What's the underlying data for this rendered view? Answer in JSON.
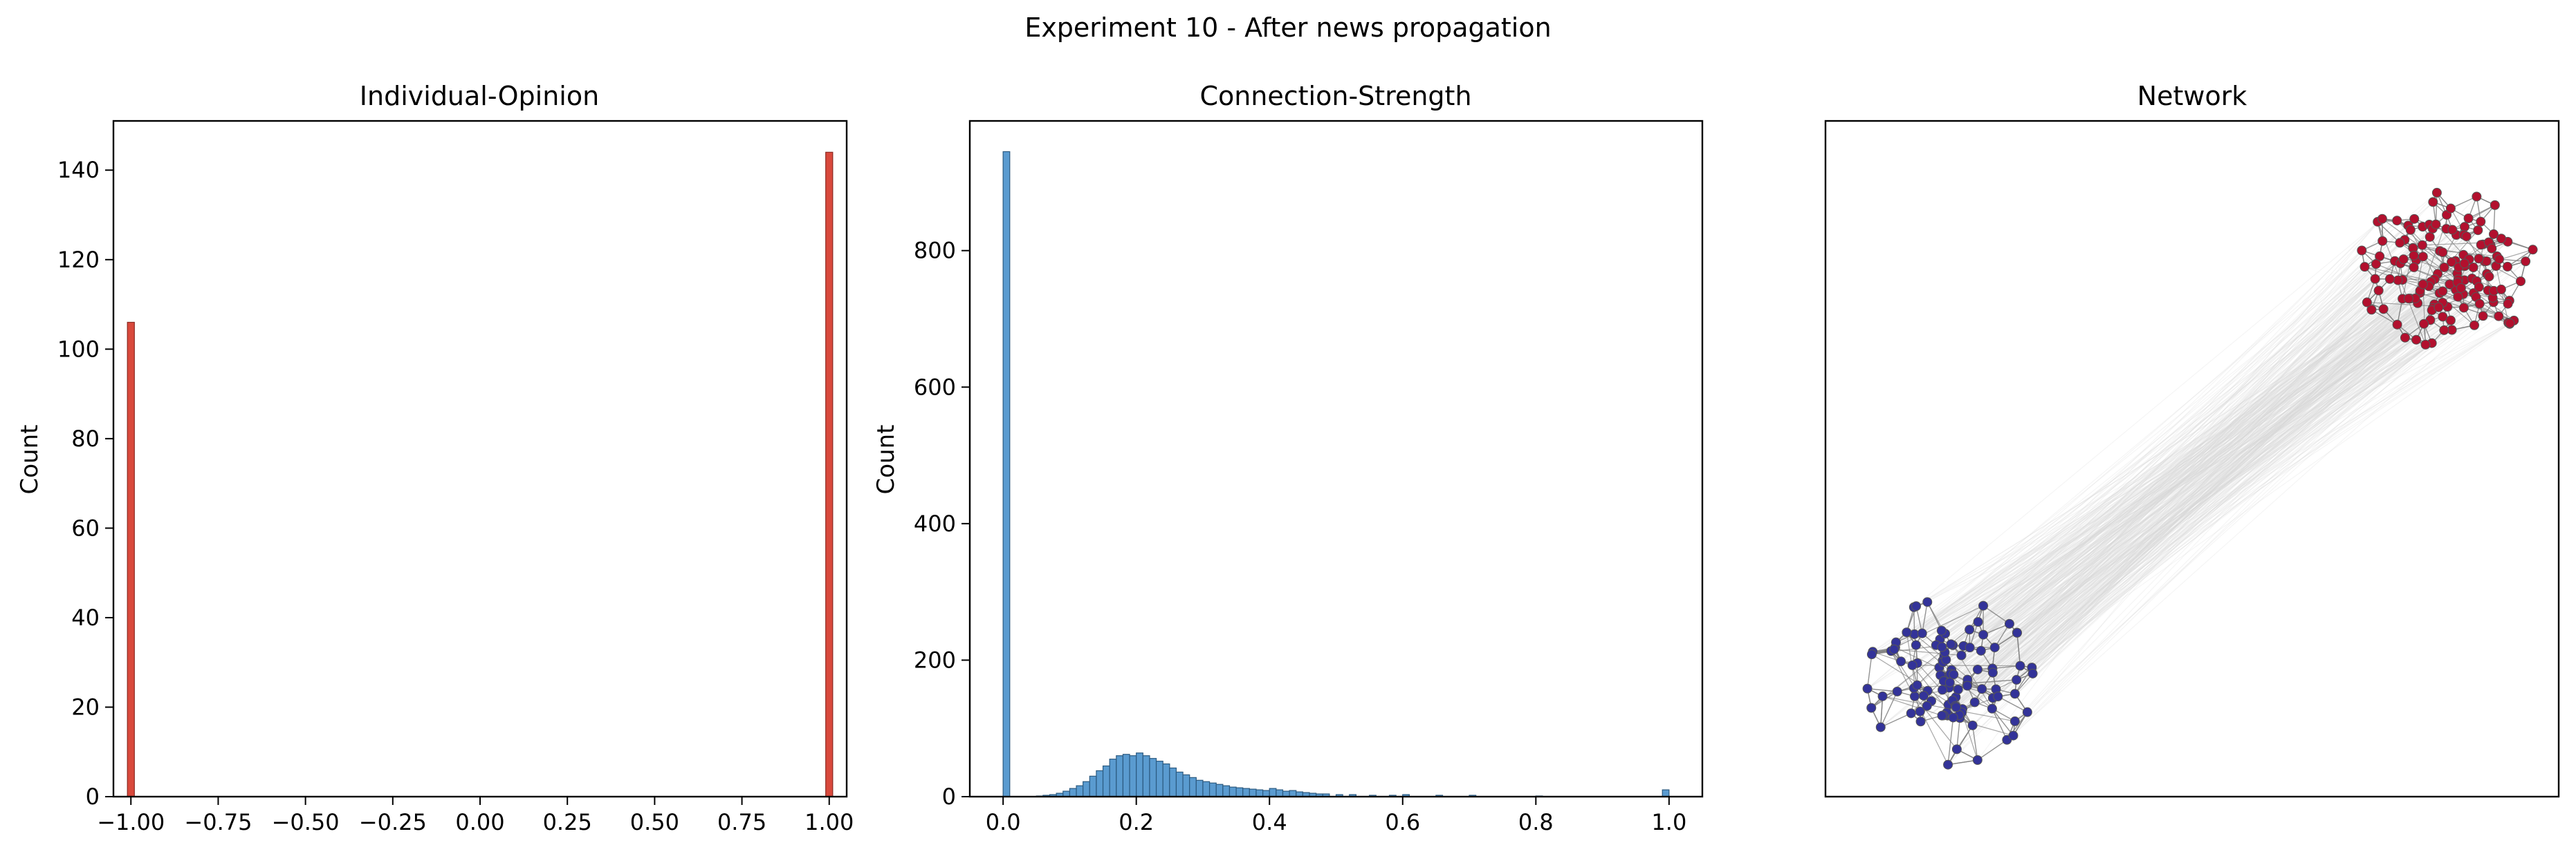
{
  "figure": {
    "suptitle": "Experiment 10 - After news propagation"
  },
  "chart_data": [
    {
      "type": "histogram",
      "title": "Individual-Opinion",
      "xlabel": "",
      "ylabel": "Count",
      "xlim": [
        -1.05,
        1.05
      ],
      "ylim": [
        0,
        151
      ],
      "xticks": [
        -1.0,
        -0.75,
        -0.5,
        -0.25,
        0.0,
        0.25,
        0.5,
        0.75,
        1.0
      ],
      "xtick_labels": [
        "−1.00",
        "−0.75",
        "−0.50",
        "−0.25",
        "0.00",
        "0.25",
        "0.50",
        "0.75",
        "1.00"
      ],
      "yticks": [
        0,
        20,
        40,
        60,
        80,
        100,
        120,
        140
      ],
      "ytick_labels": [
        "0",
        "20",
        "40",
        "60",
        "80",
        "100",
        "120",
        "140"
      ],
      "bin_width": 0.02,
      "bars": [
        {
          "x": -1.0,
          "count": 106
        },
        {
          "x": 1.0,
          "count": 144
        }
      ],
      "color": "#d9493c",
      "edge_color": "#8b2a22",
      "grid": false
    },
    {
      "type": "histogram",
      "title": "Connection-Strength",
      "xlabel": "",
      "ylabel": "Count",
      "xlim": [
        -0.05,
        1.05
      ],
      "ylim": [
        0,
        990
      ],
      "xticks": [
        0.0,
        0.2,
        0.4,
        0.6,
        0.8,
        1.0
      ],
      "xtick_labels": [
        "0.0",
        "0.2",
        "0.4",
        "0.6",
        "0.8",
        "1.0"
      ],
      "yticks": [
        0,
        200,
        400,
        600,
        800
      ],
      "ytick_labels": [
        "0",
        "200",
        "400",
        "600",
        "800"
      ],
      "bin_width": 0.01,
      "bin_starts": [
        0.0,
        0.05,
        0.06,
        0.07,
        0.08,
        0.09,
        0.1,
        0.11,
        0.12,
        0.13,
        0.14,
        0.15,
        0.16,
        0.17,
        0.18,
        0.19,
        0.2,
        0.21,
        0.22,
        0.23,
        0.24,
        0.25,
        0.26,
        0.27,
        0.28,
        0.29,
        0.3,
        0.31,
        0.32,
        0.33,
        0.34,
        0.35,
        0.36,
        0.37,
        0.38,
        0.39,
        0.4,
        0.41,
        0.42,
        0.43,
        0.44,
        0.45,
        0.46,
        0.47,
        0.48,
        0.5,
        0.52,
        0.55,
        0.58,
        0.6,
        0.65,
        0.7,
        0.8,
        0.99
      ],
      "counts": [
        945,
        1,
        2,
        3,
        5,
        8,
        12,
        16,
        22,
        30,
        38,
        45,
        55,
        60,
        62,
        60,
        64,
        60,
        56,
        52,
        48,
        42,
        36,
        32,
        28,
        24,
        22,
        20,
        18,
        16,
        14,
        13,
        12,
        11,
        10,
        9,
        12,
        10,
        8,
        9,
        7,
        6,
        5,
        4,
        4,
        3,
        3,
        2,
        2,
        3,
        2,
        2,
        1,
        10
      ],
      "color": "#5a9bd0",
      "edge_color": "#2c5a80",
      "grid": false
    },
    {
      "type": "network",
      "title": "Network",
      "clusters": [
        {
          "opinion": 1.0,
          "node_count": 144,
          "color": "#b2102e",
          "position": "top-right"
        },
        {
          "opinion": -1.0,
          "node_count": 106,
          "color": "#333399",
          "position": "bottom-left"
        }
      ],
      "edge_color": "#808080",
      "cross_edge_color": "#d9d9d9",
      "axes_visible": false
    }
  ]
}
